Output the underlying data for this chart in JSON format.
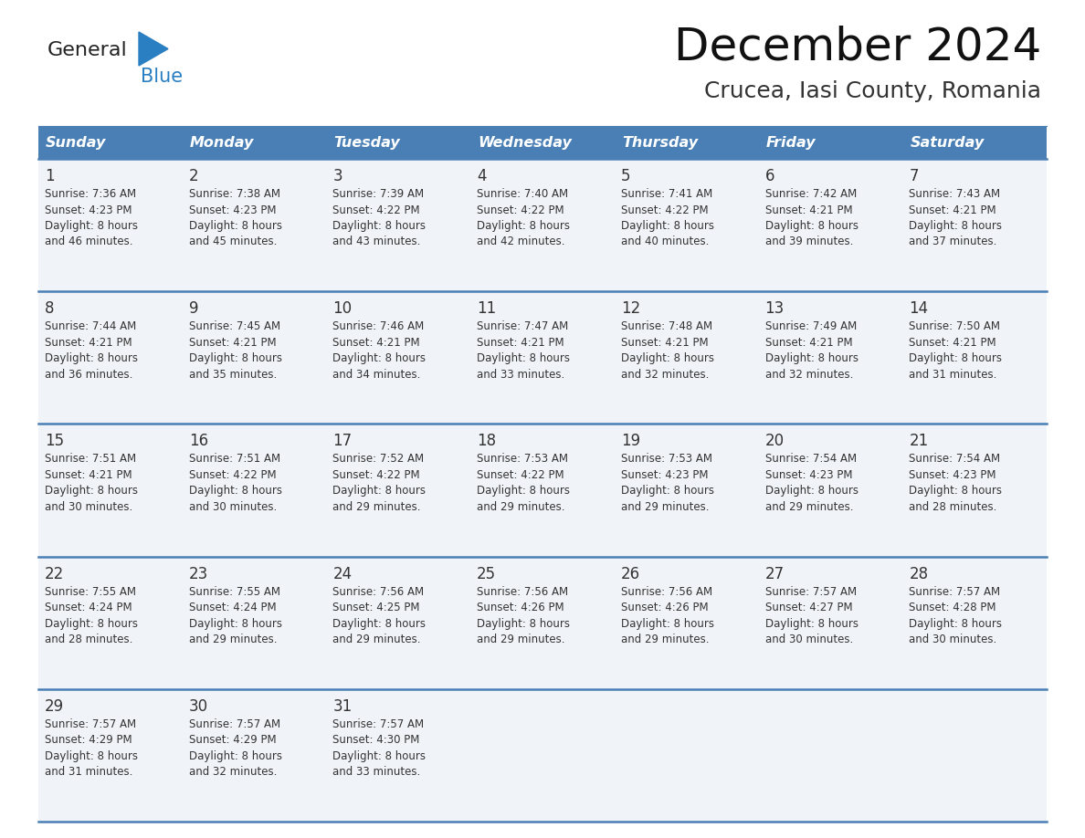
{
  "title": "December 2024",
  "subtitle": "Crucea, Iasi County, Romania",
  "header_bg_color": "#4a7fb5",
  "header_text_color": "#ffffff",
  "row_bg": "#f0f4f8",
  "divider_color": "#4a7fb5",
  "text_color": "#333333",
  "days_of_week": [
    "Sunday",
    "Monday",
    "Tuesday",
    "Wednesday",
    "Thursday",
    "Friday",
    "Saturday"
  ],
  "calendar_data": [
    [
      {
        "day": 1,
        "sunrise": "7:36 AM",
        "sunset": "4:23 PM",
        "daylight_h": "8 hours",
        "daylight_m": "46 minutes"
      },
      {
        "day": 2,
        "sunrise": "7:38 AM",
        "sunset": "4:23 PM",
        "daylight_h": "8 hours",
        "daylight_m": "45 minutes"
      },
      {
        "day": 3,
        "sunrise": "7:39 AM",
        "sunset": "4:22 PM",
        "daylight_h": "8 hours",
        "daylight_m": "43 minutes"
      },
      {
        "day": 4,
        "sunrise": "7:40 AM",
        "sunset": "4:22 PM",
        "daylight_h": "8 hours",
        "daylight_m": "42 minutes"
      },
      {
        "day": 5,
        "sunrise": "7:41 AM",
        "sunset": "4:22 PM",
        "daylight_h": "8 hours",
        "daylight_m": "40 minutes"
      },
      {
        "day": 6,
        "sunrise": "7:42 AM",
        "sunset": "4:21 PM",
        "daylight_h": "8 hours",
        "daylight_m": "39 minutes"
      },
      {
        "day": 7,
        "sunrise": "7:43 AM",
        "sunset": "4:21 PM",
        "daylight_h": "8 hours",
        "daylight_m": "37 minutes"
      }
    ],
    [
      {
        "day": 8,
        "sunrise": "7:44 AM",
        "sunset": "4:21 PM",
        "daylight_h": "8 hours",
        "daylight_m": "36 minutes"
      },
      {
        "day": 9,
        "sunrise": "7:45 AM",
        "sunset": "4:21 PM",
        "daylight_h": "8 hours",
        "daylight_m": "35 minutes"
      },
      {
        "day": 10,
        "sunrise": "7:46 AM",
        "sunset": "4:21 PM",
        "daylight_h": "8 hours",
        "daylight_m": "34 minutes"
      },
      {
        "day": 11,
        "sunrise": "7:47 AM",
        "sunset": "4:21 PM",
        "daylight_h": "8 hours",
        "daylight_m": "33 minutes"
      },
      {
        "day": 12,
        "sunrise": "7:48 AM",
        "sunset": "4:21 PM",
        "daylight_h": "8 hours",
        "daylight_m": "32 minutes"
      },
      {
        "day": 13,
        "sunrise": "7:49 AM",
        "sunset": "4:21 PM",
        "daylight_h": "8 hours",
        "daylight_m": "32 minutes"
      },
      {
        "day": 14,
        "sunrise": "7:50 AM",
        "sunset": "4:21 PM",
        "daylight_h": "8 hours",
        "daylight_m": "31 minutes"
      }
    ],
    [
      {
        "day": 15,
        "sunrise": "7:51 AM",
        "sunset": "4:21 PM",
        "daylight_h": "8 hours",
        "daylight_m": "30 minutes"
      },
      {
        "day": 16,
        "sunrise": "7:51 AM",
        "sunset": "4:22 PM",
        "daylight_h": "8 hours",
        "daylight_m": "30 minutes"
      },
      {
        "day": 17,
        "sunrise": "7:52 AM",
        "sunset": "4:22 PM",
        "daylight_h": "8 hours",
        "daylight_m": "29 minutes"
      },
      {
        "day": 18,
        "sunrise": "7:53 AM",
        "sunset": "4:22 PM",
        "daylight_h": "8 hours",
        "daylight_m": "29 minutes"
      },
      {
        "day": 19,
        "sunrise": "7:53 AM",
        "sunset": "4:23 PM",
        "daylight_h": "8 hours",
        "daylight_m": "29 minutes"
      },
      {
        "day": 20,
        "sunrise": "7:54 AM",
        "sunset": "4:23 PM",
        "daylight_h": "8 hours",
        "daylight_m": "29 minutes"
      },
      {
        "day": 21,
        "sunrise": "7:54 AM",
        "sunset": "4:23 PM",
        "daylight_h": "8 hours",
        "daylight_m": "28 minutes"
      }
    ],
    [
      {
        "day": 22,
        "sunrise": "7:55 AM",
        "sunset": "4:24 PM",
        "daylight_h": "8 hours",
        "daylight_m": "28 minutes"
      },
      {
        "day": 23,
        "sunrise": "7:55 AM",
        "sunset": "4:24 PM",
        "daylight_h": "8 hours",
        "daylight_m": "29 minutes"
      },
      {
        "day": 24,
        "sunrise": "7:56 AM",
        "sunset": "4:25 PM",
        "daylight_h": "8 hours",
        "daylight_m": "29 minutes"
      },
      {
        "day": 25,
        "sunrise": "7:56 AM",
        "sunset": "4:26 PM",
        "daylight_h": "8 hours",
        "daylight_m": "29 minutes"
      },
      {
        "day": 26,
        "sunrise": "7:56 AM",
        "sunset": "4:26 PM",
        "daylight_h": "8 hours",
        "daylight_m": "29 minutes"
      },
      {
        "day": 27,
        "sunrise": "7:57 AM",
        "sunset": "4:27 PM",
        "daylight_h": "8 hours",
        "daylight_m": "30 minutes"
      },
      {
        "day": 28,
        "sunrise": "7:57 AM",
        "sunset": "4:28 PM",
        "daylight_h": "8 hours",
        "daylight_m": "30 minutes"
      }
    ],
    [
      {
        "day": 29,
        "sunrise": "7:57 AM",
        "sunset": "4:29 PM",
        "daylight_h": "8 hours",
        "daylight_m": "31 minutes"
      },
      {
        "day": 30,
        "sunrise": "7:57 AM",
        "sunset": "4:29 PM",
        "daylight_h": "8 hours",
        "daylight_m": "32 minutes"
      },
      {
        "day": 31,
        "sunrise": "7:57 AM",
        "sunset": "4:30 PM",
        "daylight_h": "8 hours",
        "daylight_m": "33 minutes"
      },
      null,
      null,
      null,
      null
    ]
  ],
  "logo_general_color": "#222222",
  "logo_blue_color": "#2a7fc2",
  "logo_triangle_color": "#2a7fc2"
}
